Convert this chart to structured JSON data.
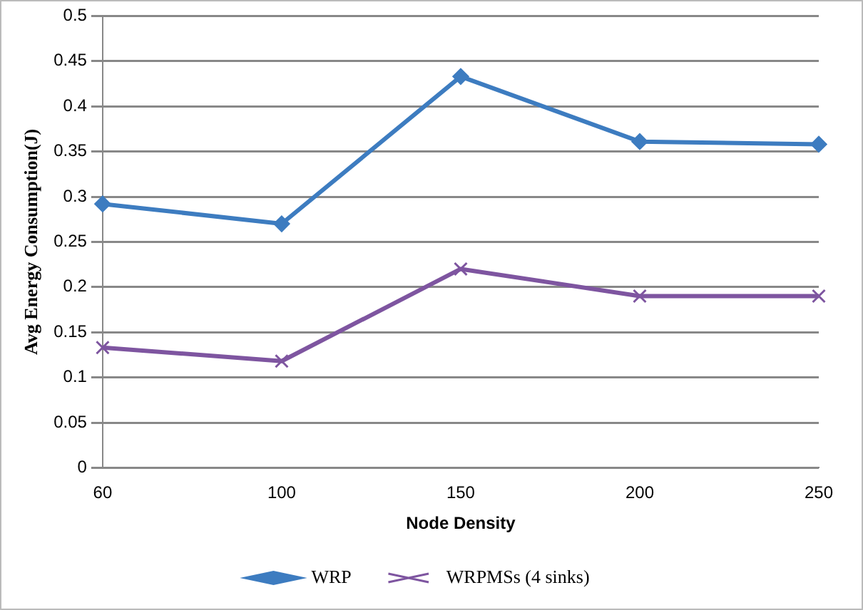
{
  "chart_data": {
    "type": "line",
    "xlabel": "Node Density",
    "ylabel": "Avg Energy Consumption(J)",
    "categories": [
      "60",
      "100",
      "150",
      "200",
      "250"
    ],
    "series": [
      {
        "name": "WRP",
        "color": "#3d7cc0",
        "marker": "diamond",
        "values": [
          0.292,
          0.27,
          0.433,
          0.361,
          0.358
        ]
      },
      {
        "name": "WRPMSs (4 sinks)",
        "color": "#7e55a0",
        "marker": "cross",
        "values": [
          0.133,
          0.118,
          0.22,
          0.19,
          0.19
        ]
      }
    ],
    "ylim": [
      0,
      0.5
    ],
    "yticks": [
      0,
      0.05,
      0.1,
      0.15,
      0.2,
      0.25,
      0.3,
      0.35,
      0.4,
      0.45,
      0.5
    ],
    "grid": "y",
    "legend": "bottom",
    "line_style": "solid"
  }
}
